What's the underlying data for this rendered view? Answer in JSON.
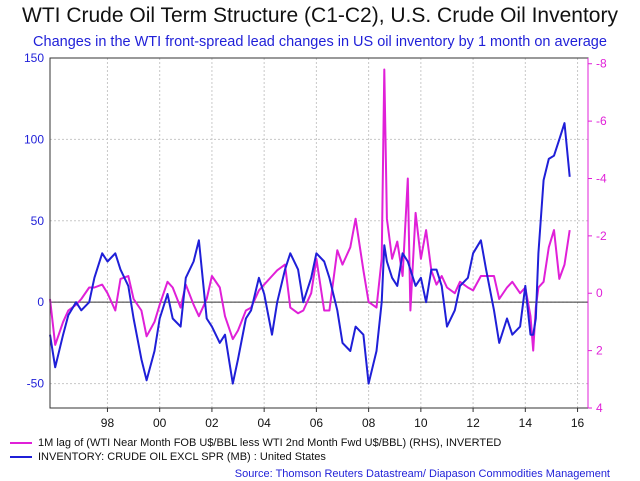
{
  "chart_data": {
    "type": "line",
    "title": "WTI Crude Oil Term Structure (C1-C2), U.S. Crude Oil Inventory",
    "subtitle": "Changes in the WTI front-spread lead changes in US oil inventory by 1 month on average",
    "x_ticks": [
      "98",
      "00",
      "02",
      "04",
      "06",
      "08",
      "10",
      "12",
      "14",
      "16"
    ],
    "x_range": [
      1996.3,
      2016.9
    ],
    "y_left": {
      "ticks": [
        "150",
        "100",
        "50",
        "0",
        "-50"
      ],
      "range": [
        -65,
        150
      ]
    },
    "y_right": {
      "ticks": [
        "-8",
        "-6",
        "-4",
        "-2",
        "0",
        "2",
        "4"
      ],
      "range": [
        4,
        -8.2
      ],
      "inverted": true
    },
    "grid": true,
    "legend_position": "bottom-left",
    "series": [
      {
        "name": "1M lag of (WTI Near Month FOB U$/BBL less WTI 2nd Month Fwd U$/BBL) (RHS), INVERTED",
        "axis": "right",
        "color": "#e020d8",
        "x": [
          1996.3,
          1996.5,
          1996.8,
          1997.0,
          1997.3,
          1997.5,
          1997.8,
          1998.0,
          1998.3,
          1998.5,
          1998.8,
          1999.0,
          1999.3,
          1999.5,
          1999.8,
          2000.0,
          2000.3,
          2000.5,
          2000.8,
          2001.0,
          2001.3,
          2001.5,
          2001.8,
          2002.0,
          2002.3,
          2002.5,
          2002.8,
          2003.0,
          2003.3,
          2003.5,
          2003.8,
          2004.0,
          2004.3,
          2004.5,
          2004.8,
          2005.0,
          2005.3,
          2005.5,
          2005.8,
          2006.0,
          2006.3,
          2006.5,
          2006.8,
          2007.0,
          2007.3,
          2007.5,
          2007.8,
          2008.0,
          2008.3,
          2008.5,
          2008.8,
          2009.0,
          2009.1,
          2009.2,
          2009.4,
          2009.6,
          2009.8,
          2010.0,
          2010.1,
          2010.3,
          2010.5,
          2010.7,
          2010.9,
          2011.1,
          2011.3,
          2011.5,
          2011.8,
          2012.0,
          2012.3,
          2012.5,
          2012.8,
          2013.0,
          2013.3,
          2013.5,
          2013.8,
          2014.0,
          2014.3,
          2014.5,
          2014.7,
          2014.8,
          2014.9,
          2015.0,
          2015.2,
          2015.4,
          2015.6,
          2015.8,
          2016.0,
          2016.2
        ],
        "y": [
          0.2,
          1.8,
          1.0,
          0.6,
          0.4,
          0.2,
          -0.2,
          -0.2,
          -0.3,
          0.0,
          0.6,
          -0.5,
          -0.6,
          0.2,
          0.6,
          1.5,
          1.0,
          0.4,
          -0.4,
          -0.2,
          0.5,
          -0.3,
          0.4,
          0.8,
          0.2,
          -0.6,
          -0.2,
          0.8,
          1.6,
          1.3,
          0.6,
          0.5,
          -0.1,
          -0.3,
          -0.6,
          -0.8,
          -1.0,
          0.5,
          0.7,
          0.6,
          0.0,
          -1.2,
          0.6,
          0.6,
          -1.5,
          -1.0,
          -1.6,
          -2.6,
          -0.8,
          0.3,
          0.5,
          -1.2,
          -7.8,
          -2.6,
          -1.2,
          -1.8,
          -0.6,
          -4.0,
          0.6,
          -2.8,
          -1.2,
          -2.2,
          -0.8,
          -0.3,
          -0.6,
          -0.2,
          0.0,
          -0.4,
          -0.2,
          -0.1,
          -0.6,
          -0.6,
          -0.6,
          0.2,
          -0.2,
          -0.4,
          0.0,
          -0.2,
          0.8,
          2.0,
          0.5,
          -0.2,
          -0.4,
          -1.6,
          -2.2,
          -0.5,
          -1.0,
          -2.2
        ]
      },
      {
        "name": "INVENTORY: CRUDE OIL EXCL SPR (MB) : United States",
        "axis": "left",
        "color": "#1f1fd8",
        "x": [
          1996.3,
          1996.5,
          1996.8,
          1997.0,
          1997.3,
          1997.5,
          1997.8,
          1998.0,
          1998.3,
          1998.5,
          1998.8,
          1999.0,
          1999.3,
          1999.5,
          1999.8,
          2000.0,
          2000.3,
          2000.5,
          2000.8,
          2001.0,
          2001.3,
          2001.5,
          2001.8,
          2002.0,
          2002.3,
          2002.5,
          2002.8,
          2003.0,
          2003.3,
          2003.5,
          2003.8,
          2004.0,
          2004.3,
          2004.5,
          2004.8,
          2005.0,
          2005.3,
          2005.5,
          2005.8,
          2006.0,
          2006.3,
          2006.5,
          2006.8,
          2007.0,
          2007.3,
          2007.5,
          2007.8,
          2008.0,
          2008.3,
          2008.5,
          2008.8,
          2009.0,
          2009.1,
          2009.2,
          2009.4,
          2009.6,
          2009.8,
          2010.0,
          2010.1,
          2010.3,
          2010.5,
          2010.7,
          2010.9,
          2011.1,
          2011.3,
          2011.5,
          2011.8,
          2012.0,
          2012.3,
          2012.5,
          2012.8,
          2013.0,
          2013.3,
          2013.5,
          2013.8,
          2014.0,
          2014.3,
          2014.5,
          2014.7,
          2014.8,
          2014.9,
          2015.0,
          2015.2,
          2015.4,
          2015.6,
          2015.8,
          2016.0,
          2016.2
        ],
        "y": [
          -20,
          -40,
          -20,
          -8,
          0,
          -5,
          0,
          15,
          30,
          25,
          30,
          20,
          10,
          -10,
          -35,
          -48,
          -30,
          -10,
          5,
          -10,
          -15,
          15,
          25,
          38,
          -10,
          -15,
          -25,
          -20,
          -50,
          -35,
          -10,
          -5,
          15,
          5,
          -20,
          0,
          20,
          30,
          20,
          0,
          15,
          30,
          25,
          15,
          -5,
          -25,
          -30,
          -15,
          -20,
          -50,
          -30,
          0,
          35,
          25,
          15,
          10,
          30,
          25,
          20,
          10,
          15,
          0,
          20,
          20,
          10,
          -15,
          -5,
          10,
          15,
          30,
          38,
          20,
          -5,
          -25,
          -10,
          -20,
          -15,
          10,
          -20,
          -20,
          -10,
          30,
          75,
          88,
          90,
          100,
          110,
          77
        ]
      }
    ],
    "source": "Source: Thomson Reuters Datastream/ Diapason Commodities Management"
  }
}
